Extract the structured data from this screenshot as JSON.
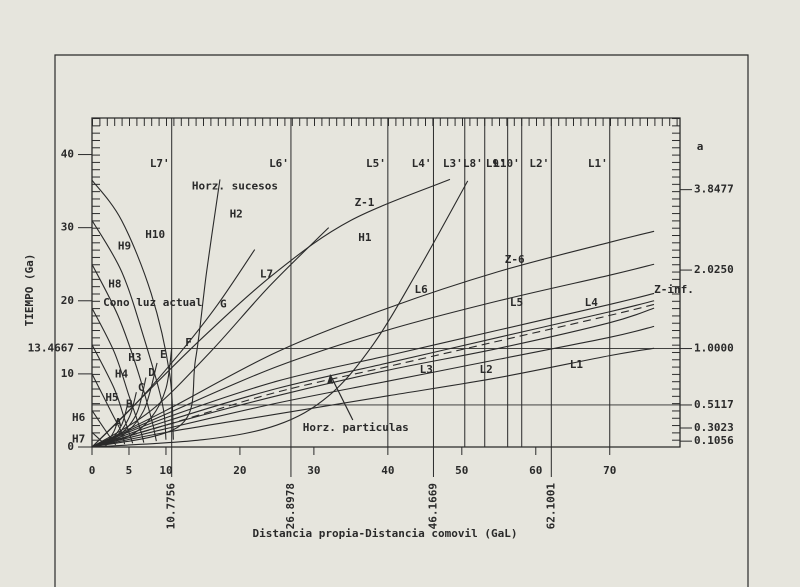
{
  "chart_data": {
    "type": "line",
    "xlabel": "Distancia propia-Distancia comovil (GaL)",
    "ylabel": "TIEMPO (Ga)",
    "y2label": "a",
    "xlim": [
      0,
      79.5
    ],
    "ylim": [
      0,
      45
    ],
    "xticks": [
      0,
      5,
      10,
      20,
      30,
      40,
      50,
      60,
      70
    ],
    "yticks": [
      0,
      10,
      13.4667,
      20,
      30,
      40
    ],
    "y2ticks": [
      {
        "value": 3.8477,
        "time": 35.2
      },
      {
        "value": 2.025,
        "label": "2.0250",
        "time": 24.2
      },
      {
        "value": 1,
        "label": "1.0000",
        "time": 13.4667
      },
      {
        "value": 0.5117,
        "time": 5.75
      },
      {
        "value": 0.3023,
        "time": 2.6
      },
      {
        "value": 0.1056,
        "time": 0.8
      }
    ],
    "color": "#2a2a2a",
    "vlines": [
      {
        "name": "L7'",
        "x": 10.7756,
        "printed": true
      },
      {
        "name": "L6'",
        "x": 26.8978,
        "printed": true
      },
      {
        "name": "L5'",
        "x": 40
      },
      {
        "name": "L4'",
        "x": 46.1669,
        "printed": true
      },
      {
        "name": "L3'",
        "x": 50.4
      },
      {
        "name": "L8'",
        "x": 53.1
      },
      {
        "name": "L9'",
        "x": 56.2
      },
      {
        "name": "L10'",
        "x": 58.1
      },
      {
        "name": "L2'",
        "x": 62.1001,
        "printed": true
      },
      {
        "name": "L1'",
        "x": 70
      }
    ],
    "hlines": [
      13.4667,
      5.75
    ],
    "series": [
      {
        "name": "L1",
        "x": [
          0,
          10,
          25,
          40,
          55,
          70,
          76
        ],
        "values": [
          0,
          2,
          4.5,
          7,
          9.5,
          12.5,
          13.5
        ],
        "label_at": [
          64.6,
          11.2
        ]
      },
      {
        "name": "L2",
        "x": [
          0,
          10,
          25,
          40,
          55,
          70,
          76
        ],
        "values": [
          0,
          2.5,
          6,
          9,
          12,
          15,
          16.5
        ],
        "label_at": [
          52.4,
          10.5
        ]
      },
      {
        "name": "L3",
        "x": [
          0,
          10,
          25,
          40,
          55,
          70,
          76
        ],
        "values": [
          0,
          3,
          7,
          10.5,
          13.5,
          17,
          19
        ],
        "label_at": [
          44.3,
          10.5
        ]
      },
      {
        "name": "L4",
        "x": [
          0,
          10,
          25,
          40,
          55,
          70,
          76
        ],
        "values": [
          0,
          3.5,
          8,
          11.5,
          15,
          18.5,
          20
        ],
        "label_at": [
          66.6,
          19.7
        ]
      },
      {
        "name": "L5",
        "x": [
          0,
          10,
          25,
          40,
          55,
          70,
          76
        ],
        "values": [
          0,
          4,
          9,
          12.5,
          16,
          19.5,
          21
        ],
        "label_at": [
          56.5,
          19.7
        ]
      },
      {
        "name": "L6",
        "x": [
          0,
          10,
          25,
          40,
          55,
          70,
          76
        ],
        "values": [
          0,
          4.5,
          11,
          16,
          20,
          23.5,
          25
        ],
        "label_at": [
          43.6,
          21.5
        ]
      },
      {
        "name": "Z-6",
        "x": [
          0,
          10,
          25,
          40,
          55,
          70,
          76
        ],
        "values": [
          0,
          5,
          13,
          19,
          24,
          28,
          29.5
        ],
        "label_at": [
          55.8,
          25.6
        ]
      },
      {
        "name": "Z-inf.",
        "x": [
          0,
          10,
          25,
          40,
          55,
          70,
          76
        ],
        "values": [
          0,
          3,
          7.5,
          11,
          14.5,
          18,
          19.5
        ],
        "label_at": [
          76,
          21.5
        ],
        "dashed": true
      },
      {
        "name": "Z-1",
        "x": [
          0,
          5,
          15,
          25,
          35,
          48.4
        ],
        "values": [
          0,
          5,
          15,
          24,
          31,
          36.6
        ],
        "label_at": [
          35.5,
          33.4
        ]
      },
      {
        "name": "L7",
        "x": [
          0,
          8,
          16,
          24,
          32
        ],
        "values": [
          0,
          5,
          13,
          22,
          30
        ],
        "label_at": [
          22.7,
          23.6
        ]
      },
      {
        "name": "G",
        "x": [
          0,
          6,
          12,
          17,
          22
        ],
        "values": [
          0,
          6,
          13,
          19.5,
          27
        ],
        "label_at": [
          17.3,
          19.5
        ]
      },
      {
        "name": "H1",
        "x": [
          0,
          15,
          25,
          32,
          38,
          44,
          50.8
        ],
        "values": [
          0,
          1,
          3,
          7,
          14,
          24,
          36.4
        ],
        "label_at": [
          36,
          28.6
        ]
      },
      {
        "name": "H2",
        "x": [
          0,
          12,
          14,
          15.5,
          17.3
        ],
        "values": [
          0,
          3,
          12,
          24,
          36.6
        ],
        "label_at": [
          18.6,
          31.8
        ]
      },
      {
        "name": "F",
        "x": [
          0,
          5,
          8,
          10,
          10.7756
        ],
        "values": [
          0,
          1.5,
          4,
          8,
          13.5
        ],
        "label_at": [
          12.6,
          14.2
        ]
      },
      {
        "name": "E",
        "x": [
          0,
          4,
          7,
          8.8
        ],
        "values": [
          0,
          1.5,
          5,
          11.5
        ],
        "label_at": [
          9.2,
          12.6
        ]
      },
      {
        "name": "D",
        "x": [
          0,
          3.5,
          6,
          7.3
        ],
        "values": [
          0,
          1.5,
          4.5,
          9.5
        ],
        "label_at": [
          7.6,
          10.1
        ]
      },
      {
        "name": "C",
        "x": [
          0,
          3,
          5,
          6
        ],
        "values": [
          0,
          1.2,
          4,
          7.5
        ],
        "label_at": [
          6.2,
          8.1
        ]
      },
      {
        "name": "B",
        "x": [
          0,
          2.5,
          4,
          4.8
        ],
        "values": [
          0,
          1,
          3,
          5.8
        ],
        "label_at": [
          4.6,
          5.8
        ]
      },
      {
        "name": "A",
        "x": [
          0,
          2,
          3,
          3.5
        ],
        "values": [
          0,
          0.8,
          2.2,
          3.8
        ],
        "label_at": [
          3.1,
          3.3
        ]
      },
      {
        "name": "H10",
        "x": [
          0,
          4,
          8,
          10.5,
          11
        ],
        "values": [
          36.5,
          31,
          21,
          10,
          1
        ],
        "label_at": [
          7.2,
          29
        ]
      },
      {
        "name": "H9",
        "x": [
          0,
          4,
          7,
          9.5,
          10
        ],
        "values": [
          31,
          24,
          15,
          6,
          1
        ],
        "label_at": [
          3.5,
          27.4
        ]
      },
      {
        "name": "H8",
        "x": [
          0,
          3.5,
          6,
          8,
          8.7
        ],
        "values": [
          25,
          18,
          11,
          4,
          0.8
        ],
        "label_at": [
          2.2,
          22.2
        ]
      },
      {
        "name": "H3",
        "x": [
          0,
          3,
          5,
          6.5,
          7
        ],
        "values": [
          19,
          13,
          7,
          2.5,
          0.6
        ],
        "label_at": [
          4.9,
          12.2
        ]
      },
      {
        "name": "H4",
        "x": [
          0,
          3,
          4.5,
          5.5
        ],
        "values": [
          14,
          8,
          3.5,
          0.5
        ],
        "label_at": [
          3.1,
          9.9
        ]
      },
      {
        "name": "H5",
        "x": [
          0,
          2.5,
          4,
          4.4
        ],
        "values": [
          10,
          5,
          2,
          0.4
        ],
        "label_at": [
          1.8,
          6.7
        ]
      },
      {
        "name": "H6",
        "x": [
          0,
          2,
          3.2
        ],
        "values": [
          5,
          2,
          0.3
        ],
        "label_at": [
          -2.7,
          4
        ]
      },
      {
        "name": "H7",
        "x": [
          0,
          1.5,
          2
        ],
        "values": [
          2,
          0.6,
          0.1
        ],
        "label_at": [
          -2.7,
          1
        ]
      }
    ],
    "annotations": [
      {
        "text": "Cono luz actual",
        "x": 1.5,
        "y": 19.7
      },
      {
        "text": "Horz. sucesos",
        "x": 13.5,
        "y": 35.6
      },
      {
        "text": "Horz. particulas",
        "x": 28.5,
        "y": 2.6,
        "arrow_to": [
          32.2,
          9.9
        ]
      }
    ]
  }
}
